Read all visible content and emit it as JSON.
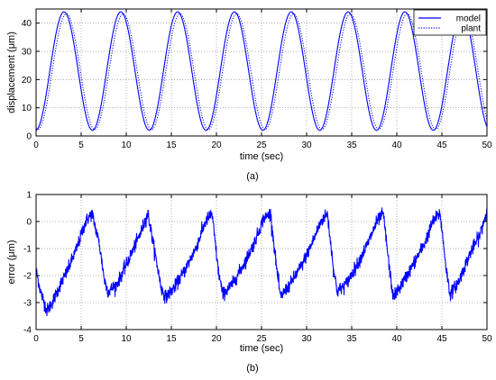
{
  "chart_data": [
    {
      "type": "line",
      "title": "",
      "xlabel": "time (sec)",
      "ylabel": "displacement (μm)",
      "caption": "(a)",
      "xlim": [
        0,
        50
      ],
      "ylim": [
        0,
        45
      ],
      "xticks": [
        0,
        5,
        10,
        15,
        20,
        25,
        30,
        35,
        40,
        45,
        50
      ],
      "yticks": [
        0,
        10,
        20,
        30,
        40
      ],
      "grid": true,
      "legend_position": "top-right",
      "series": [
        {
          "name": "model",
          "style": "solid",
          "color": "#0000ff",
          "function": "sinusoid",
          "amplitude": 21.0,
          "offset": 23.0,
          "period": 6.3,
          "first_peak_time": 3.1
        },
        {
          "name": "plant",
          "style": "dotted",
          "color": "#0000ff",
          "function": "sinusoid",
          "amplitude": 20.5,
          "offset": 22.8,
          "period": 6.3,
          "first_peak_time": 3.35
        }
      ]
    },
    {
      "type": "line",
      "title": "",
      "xlabel": "time (sec)",
      "ylabel": "error (μm)",
      "caption": "(b)",
      "xlim": [
        0,
        50
      ],
      "ylim": [
        -4,
        1
      ],
      "xticks": [
        0,
        5,
        10,
        15,
        20,
        25,
        30,
        35,
        40,
        45,
        50
      ],
      "yticks": [
        -4,
        -3,
        -2,
        -1,
        0,
        1
      ],
      "grid": true,
      "series": [
        {
          "color": "#0000ff",
          "style": "solid",
          "function": "noisy sawtooth",
          "period": 6.3,
          "noise_std": 0.12,
          "x": [
            0.0,
            0.5,
            1.2,
            1.8,
            2.6,
            3.5,
            4.5,
            5.5,
            6.2,
            7.0,
            7.6,
            8.0,
            9.0,
            10.0,
            11.5,
            12.4,
            13.2,
            13.9,
            14.4,
            15.4,
            16.5,
            17.7,
            18.8,
            19.5,
            20.2,
            20.7,
            21.8,
            23.0,
            24.2,
            25.2,
            26.0,
            26.7,
            27.1,
            28.2,
            29.5,
            30.6,
            31.6,
            32.3,
            33.0,
            33.4,
            34.4,
            35.6,
            36.8,
            37.8,
            38.5,
            39.2,
            39.6,
            40.6,
            41.8,
            43.1,
            44.0,
            44.8,
            45.5,
            45.9,
            46.9,
            48.1,
            49.2,
            50.0
          ],
          "y": [
            -1.8,
            -2.6,
            -3.3,
            -3.0,
            -2.4,
            -1.8,
            -1.0,
            0.0,
            0.3,
            -0.8,
            -2.2,
            -2.6,
            -2.3,
            -1.6,
            -0.5,
            0.3,
            -1.2,
            -2.5,
            -2.8,
            -2.4,
            -1.8,
            -1.0,
            0.0,
            0.3,
            -1.8,
            -2.7,
            -2.3,
            -1.6,
            -0.8,
            0.1,
            0.3,
            -1.8,
            -2.8,
            -2.3,
            -1.6,
            -0.8,
            0.0,
            0.3,
            -1.8,
            -2.6,
            -2.3,
            -1.6,
            -0.8,
            0.0,
            0.3,
            -1.8,
            -2.8,
            -2.3,
            -1.6,
            -0.8,
            0.0,
            0.3,
            -1.8,
            -2.7,
            -2.2,
            -1.2,
            -0.5,
            0.4
          ]
        }
      ]
    }
  ]
}
